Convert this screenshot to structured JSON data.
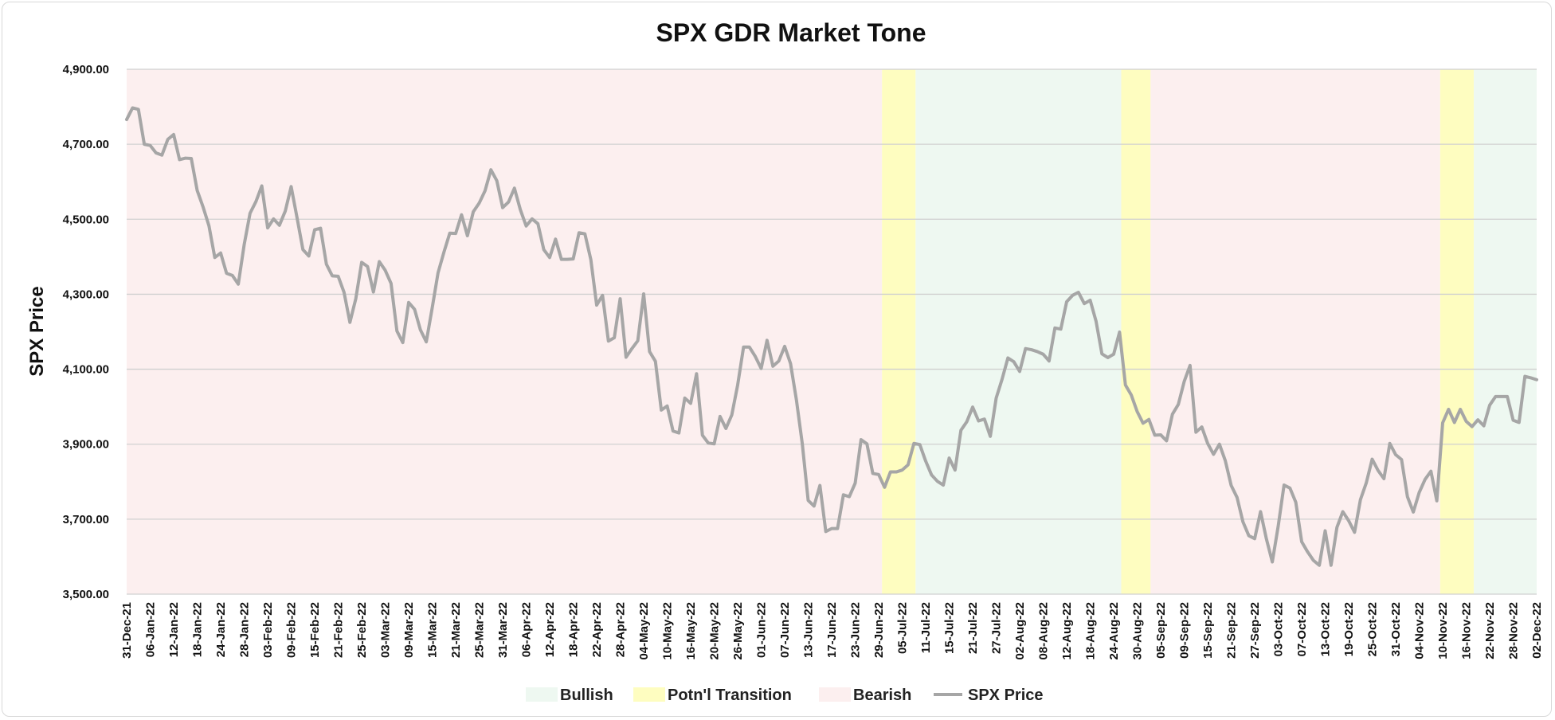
{
  "chart_data": {
    "type": "line",
    "title": "SPX GDR Market Tone",
    "ylabel": "SPX Price",
    "xlabel": "",
    "ylim": [
      3500,
      4900
    ],
    "yticks": [
      3500,
      3700,
      3900,
      4100,
      4300,
      4500,
      4700,
      4900
    ],
    "ytick_labels": [
      "3,500.00",
      "3,700.00",
      "3,900.00",
      "4,100.00",
      "4,300.00",
      "4,500.00",
      "4,700.00",
      "4,900.00"
    ],
    "grid": true,
    "legend_position": "bottom",
    "x_tick_labels": [
      "31-Dec-21",
      "06-Jan-22",
      "12-Jan-22",
      "18-Jan-22",
      "24-Jan-22",
      "28-Jan-22",
      "03-Feb-22",
      "09-Feb-22",
      "15-Feb-22",
      "21-Feb-22",
      "25-Feb-22",
      "03-Mar-22",
      "09-Mar-22",
      "15-Mar-22",
      "21-Mar-22",
      "25-Mar-22",
      "31-Mar-22",
      "06-Apr-22",
      "12-Apr-22",
      "18-Apr-22",
      "22-Apr-22",
      "28-Apr-22",
      "04-May-22",
      "10-May-22",
      "16-May-22",
      "20-May-22",
      "26-May-22",
      "01-Jun-22",
      "07-Jun-22",
      "13-Jun-22",
      "17-Jun-22",
      "23-Jun-22",
      "29-Jun-22",
      "05-Jul-22",
      "11-Jul-22",
      "15-Jul-22",
      "21-Jul-22",
      "27-Jul-22",
      "02-Aug-22",
      "08-Aug-22",
      "12-Aug-22",
      "18-Aug-22",
      "24-Aug-22",
      "30-Aug-22",
      "05-Sep-22",
      "09-Sep-22",
      "15-Sep-22",
      "21-Sep-22",
      "27-Sep-22",
      "03-Oct-22",
      "07-Oct-22",
      "13-Oct-22",
      "19-Oct-22",
      "25-Oct-22",
      "31-Oct-22",
      "04-Nov-22",
      "10-Nov-22",
      "16-Nov-22",
      "22-Nov-22",
      "28-Nov-22",
      "02-Dec-22"
    ],
    "regions": [
      {
        "tone": "Bearish",
        "start": "31-Dec-21",
        "end": "29-Jun-22"
      },
      {
        "tone": "Potn'l Transition",
        "start": "29-Jun-22",
        "end": "07-Jul-22"
      },
      {
        "tone": "Bullish",
        "start": "07-Jul-22",
        "end": "25-Aug-22"
      },
      {
        "tone": "Potn'l Transition",
        "start": "25-Aug-22",
        "end": "01-Sep-22"
      },
      {
        "tone": "Bearish",
        "start": "01-Sep-22",
        "end": "09-Nov-22"
      },
      {
        "tone": "Potn'l Transition",
        "start": "09-Nov-22",
        "end": "17-Nov-22"
      },
      {
        "tone": "Bullish",
        "start": "17-Nov-22",
        "end": "02-Dec-22"
      }
    ],
    "series": [
      {
        "name": "SPX Price",
        "color": "#a6a6a6",
        "values": [
          4766,
          4797,
          4793,
          4700,
          4697,
          4677,
          4671,
          4713,
          4726,
          4659,
          4663,
          4662,
          4577,
          4533,
          4483,
          4398,
          4410,
          4356,
          4350,
          4327,
          4432,
          4516,
          4547,
          4589,
          4477,
          4501,
          4484,
          4522,
          4587,
          4504,
          4419,
          4402,
          4472,
          4476,
          4380,
          4349,
          4348,
          4305,
          4225,
          4288,
          4385,
          4374,
          4306,
          4387,
          4364,
          4329,
          4202,
          4171,
          4278,
          4260,
          4205,
          4173,
          4263,
          4357,
          4412,
          4463,
          4462,
          4512,
          4456,
          4520,
          4543,
          4576,
          4632,
          4603,
          4531,
          4546,
          4583,
          4526,
          4482,
          4501,
          4488,
          4419,
          4398,
          4447,
          4393,
          4393,
          4394,
          4464,
          4461,
          4393,
          4271,
          4297,
          4175,
          4184,
          4288,
          4132,
          4155,
          4176,
          4301,
          4147,
          4121,
          3991,
          4002,
          3935,
          3930,
          4023,
          4009,
          4088,
          3924,
          3903,
          3901,
          3974,
          3942,
          3978,
          4058,
          4159,
          4159,
          4134,
          4102,
          4177,
          4108,
          4122,
          4161,
          4115,
          4018,
          3901,
          3750,
          3735,
          3790,
          3667,
          3675,
          3675,
          3765,
          3760,
          3796,
          3912,
          3901,
          3822,
          3819,
          3785,
          3826,
          3826,
          3831,
          3845,
          3902,
          3899,
          3855,
          3818,
          3801,
          3791,
          3863,
          3831,
          3937,
          3960,
          3999,
          3962,
          3967,
          3921,
          4023,
          4073,
          4130,
          4120,
          4094,
          4155,
          4152,
          4147,
          4140,
          4122,
          4210,
          4207,
          4280,
          4297,
          4305,
          4275,
          4284,
          4228,
          4141,
          4131,
          4140,
          4199,
          4058,
          4031,
          3987,
          3956,
          3966,
          3924,
          3925,
          3909,
          3980,
          4006,
          4067,
          4110,
          3932,
          3946,
          3902,
          3873,
          3900,
          3856,
          3790,
          3758,
          3693,
          3656,
          3648,
          3720,
          3647,
          3586,
          3681,
          3791,
          3783,
          3745,
          3640,
          3613,
          3590,
          3577,
          3669,
          3577,
          3678,
          3720,
          3696,
          3665,
          3752,
          3797,
          3860,
          3830,
          3808,
          3902,
          3872,
          3859,
          3760,
          3719,
          3771,
          3806,
          3828,
          3749,
          3957,
          3993,
          3958,
          3993,
          3961,
          3947,
          3965,
          3949,
          4004,
          4027,
          4027,
          4027,
          3964,
          3958,
          4081,
          4077,
          4072
        ]
      }
    ],
    "legend": [
      {
        "label": "Bullish",
        "color": "#eef8f1",
        "kind": "area"
      },
      {
        "label": "Potn'l Transition",
        "color": "#fefdc0",
        "kind": "area"
      },
      {
        "label": "Bearish",
        "color": "#fcefef",
        "kind": "area"
      },
      {
        "label": "SPX Price",
        "color": "#a6a6a6",
        "kind": "line"
      }
    ]
  }
}
